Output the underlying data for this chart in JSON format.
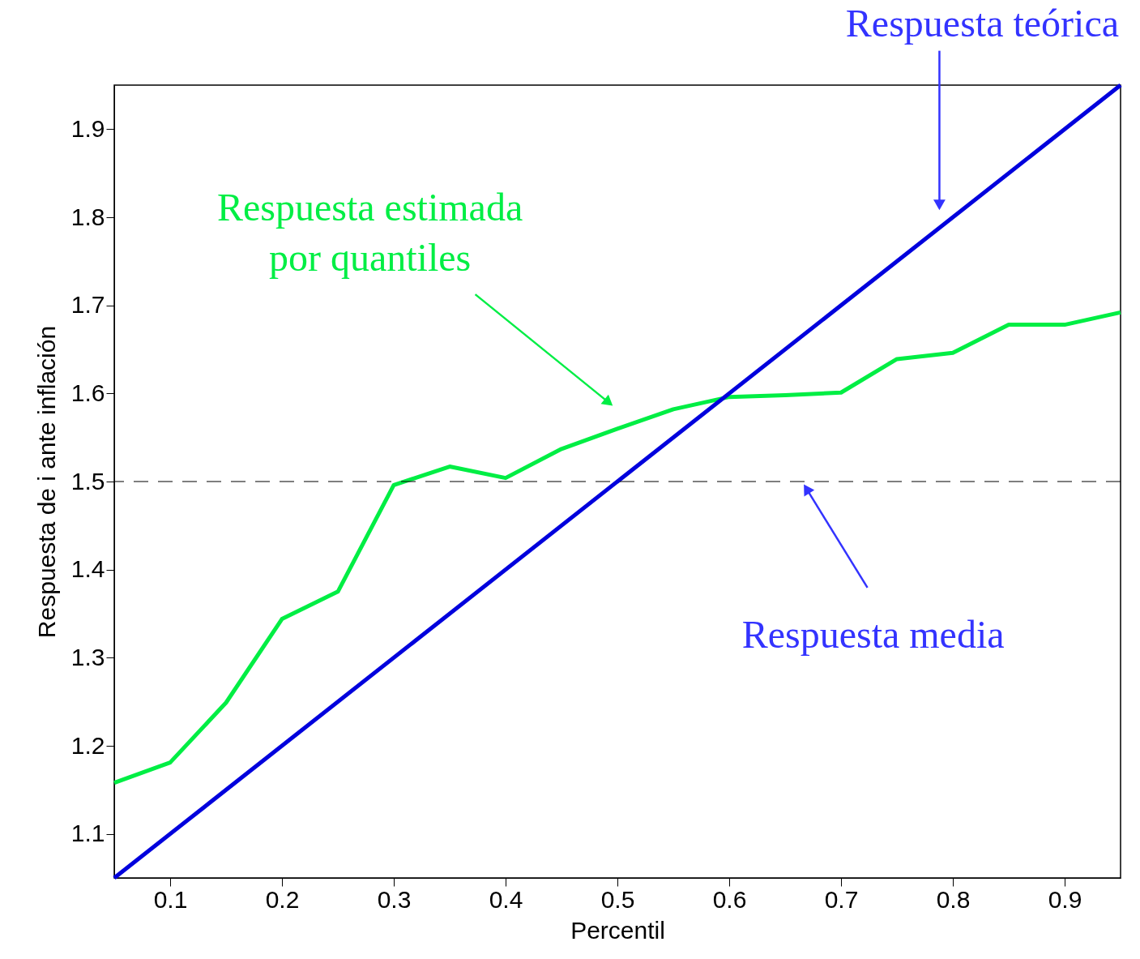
{
  "chart_data": {
    "type": "line",
    "xlabel": "Percentil",
    "ylabel": "Respuesta de i ante inflación",
    "x": [
      0.05,
      0.1,
      0.15,
      0.2,
      0.25,
      0.3,
      0.35,
      0.4,
      0.45,
      0.5,
      0.55,
      0.6,
      0.65,
      0.7,
      0.75,
      0.8,
      0.85,
      0.9,
      0.95
    ],
    "series": [
      {
        "color": "#00ee44",
        "values": [
          1.158,
          1.181,
          1.249,
          1.344,
          1.375,
          1.496,
          1.517,
          1.504,
          1.537,
          1.56,
          1.582,
          1.596,
          1.598,
          1.601,
          1.639,
          1.646,
          1.678,
          1.678,
          1.692
        ]
      },
      {
        "color": "#0000dd",
        "x": [
          0.05,
          0.95
        ],
        "values": [
          1.05,
          1.95
        ]
      }
    ],
    "xlim": [
      0.05,
      0.95
    ],
    "ylim": [
      1.05,
      1.95
    ],
    "xticks": [
      0.1,
      0.2,
      0.3,
      0.4,
      0.5,
      0.6,
      0.7,
      0.8,
      0.9
    ],
    "yticks": [
      1.1,
      1.2,
      1.3,
      1.4,
      1.5,
      1.6,
      1.7,
      1.8,
      1.9
    ],
    "ref_lines": [
      {
        "axis": "y",
        "value": 1.5,
        "color": "#000000",
        "line_style": "dashed"
      }
    ],
    "annotations": [
      {
        "text": "Respuesta teórica",
        "x": 0.788,
        "y": 1.816
      },
      {
        "text": "Respuesta estimada\npor quantiles",
        "x": 0.491,
        "y": 1.591
      },
      {
        "text": "Respuesta media",
        "x": 0.67,
        "y": 1.49
      }
    ],
    "grid": false,
    "marker": "none",
    "line_style": "solid"
  }
}
